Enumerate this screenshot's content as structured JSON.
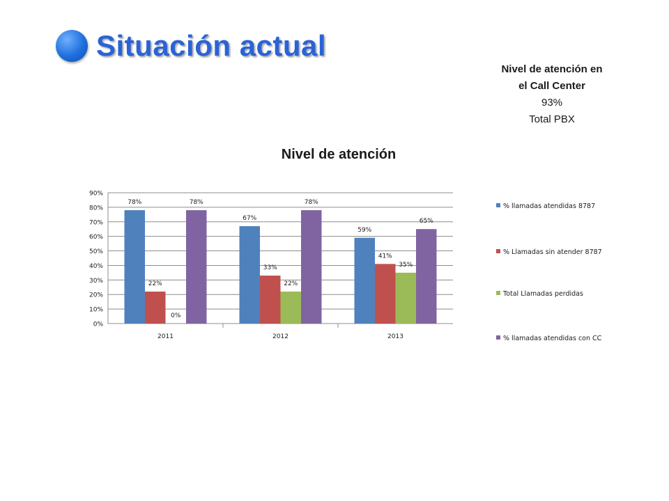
{
  "slide": {
    "title": "Situación actual",
    "note_heading_line1": "Nivel de atención en",
    "note_heading_line2": "el Call Center",
    "note_value": "93%",
    "note_label": "Total PBX"
  },
  "chart_data": {
    "type": "bar",
    "title": "Nivel de atención",
    "categories": [
      "2011",
      "2012",
      "2013"
    ],
    "ylim": [
      0,
      90
    ],
    "yticks": [
      0,
      10,
      20,
      30,
      40,
      50,
      60,
      70,
      80,
      90
    ],
    "ytick_labels": [
      "0%",
      "10%",
      "20%",
      "30%",
      "40%",
      "50%",
      "60%",
      "70%",
      "80%",
      "90%"
    ],
    "grid": true,
    "legend_position": "right",
    "series": [
      {
        "name": "% llamadas atendidas 8787",
        "color": "#4f81bd",
        "values": [
          78,
          67,
          59
        ],
        "labels": [
          "78%",
          "67%",
          "59%"
        ]
      },
      {
        "name": "% Llamadas sin atender 8787",
        "color": "#c0504d",
        "values": [
          22,
          33,
          41
        ],
        "labels": [
          "22%",
          "33%",
          "41%"
        ]
      },
      {
        "name": "Total Llamadas perdidas",
        "color": "#9bbb59",
        "values": [
          0,
          22,
          35
        ],
        "labels": [
          "0%",
          "22%",
          "35%"
        ]
      },
      {
        "name": "% llamadas atendidas con CC",
        "color": "#8064a2",
        "values": [
          78,
          78,
          65
        ],
        "labels": [
          "78%",
          "78%",
          "65%"
        ]
      }
    ]
  }
}
